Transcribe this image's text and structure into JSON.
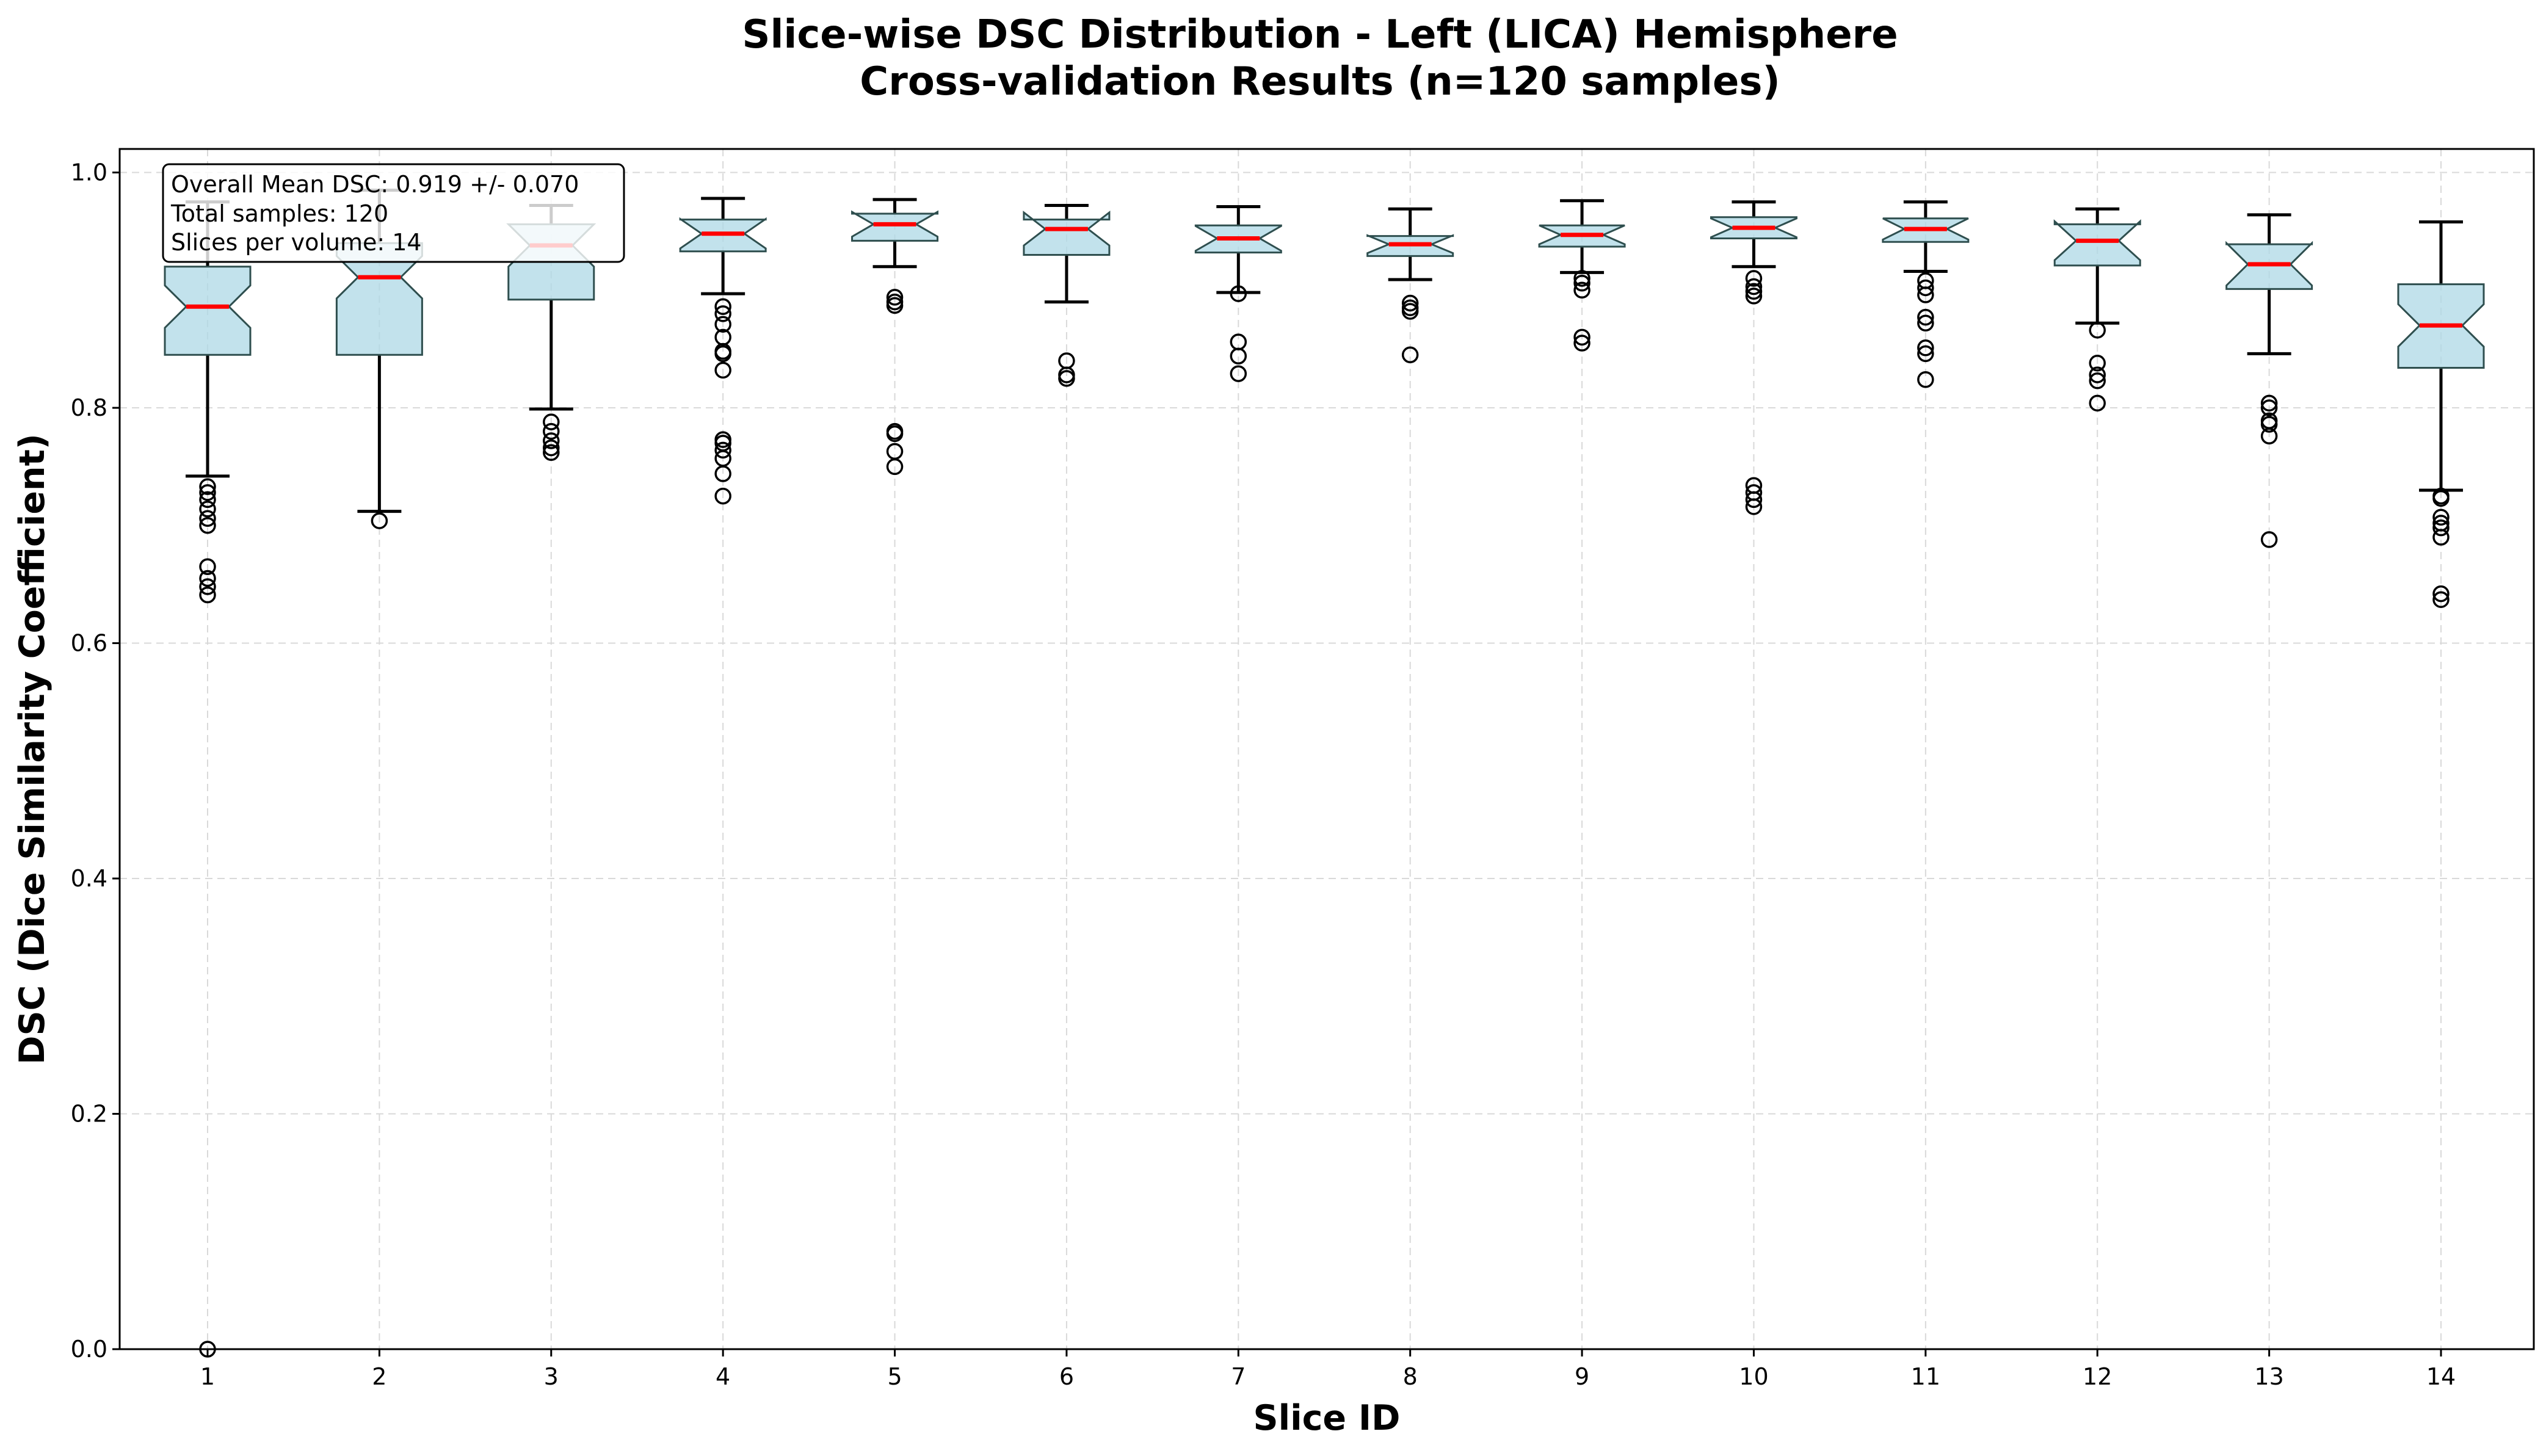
{
  "chart_data": {
    "type": "box",
    "title_lines": [
      "Slice-wise DSC Distribution - Left (LICA) Hemisphere",
      "Cross-validation Results (n=120 samples)"
    ],
    "xlabel": "Slice ID",
    "ylabel": "DSC (Dice Similarity Coefficient)",
    "ylim": [
      0.0,
      1.02
    ],
    "yticks": [
      "0.0",
      "0.2",
      "0.4",
      "0.6",
      "0.8",
      "1.0"
    ],
    "grid": true,
    "notched": true,
    "categories": [
      "1",
      "2",
      "3",
      "4",
      "5",
      "6",
      "7",
      "8",
      "9",
      "10",
      "11",
      "12",
      "13",
      "14"
    ],
    "boxes": [
      {
        "slice": "1",
        "whisker_low": 0.742,
        "q1": 0.845,
        "median": 0.886,
        "q3": 0.92,
        "whisker_high": 0.975,
        "outliers": [
          0.733,
          0.728,
          0.722,
          0.714,
          0.706,
          0.7,
          0.665,
          0.655,
          0.648,
          0.641,
          0.0
        ]
      },
      {
        "slice": "2",
        "whisker_low": 0.712,
        "q1": 0.845,
        "median": 0.911,
        "q3": 0.94,
        "whisker_high": 0.985,
        "outliers": [
          0.704
        ]
      },
      {
        "slice": "3",
        "whisker_low": 0.799,
        "q1": 0.892,
        "median": 0.938,
        "q3": 0.956,
        "whisker_high": 0.972,
        "outliers": [
          0.788,
          0.78,
          0.772,
          0.766,
          0.762
        ]
      },
      {
        "slice": "4",
        "whisker_low": 0.897,
        "q1": 0.933,
        "median": 0.948,
        "q3": 0.96,
        "whisker_high": 0.978,
        "outliers": [
          0.886,
          0.88,
          0.871,
          0.86,
          0.848,
          0.846,
          0.832,
          0.773,
          0.77,
          0.764,
          0.757,
          0.744,
          0.725
        ]
      },
      {
        "slice": "5",
        "whisker_low": 0.92,
        "q1": 0.942,
        "median": 0.956,
        "q3": 0.965,
        "whisker_high": 0.977,
        "outliers": [
          0.894,
          0.89,
          0.887,
          0.78,
          0.778,
          0.763,
          0.75
        ]
      },
      {
        "slice": "6",
        "whisker_low": 0.89,
        "q1": 0.93,
        "median": 0.952,
        "q3": 0.96,
        "whisker_high": 0.972,
        "outliers": [
          0.84,
          0.828,
          0.825
        ]
      },
      {
        "slice": "7",
        "whisker_low": 0.898,
        "q1": 0.932,
        "median": 0.944,
        "q3": 0.955,
        "whisker_high": 0.971,
        "outliers": [
          0.897,
          0.856,
          0.844,
          0.829
        ]
      },
      {
        "slice": "8",
        "whisker_low": 0.909,
        "q1": 0.929,
        "median": 0.939,
        "q3": 0.946,
        "whisker_high": 0.969,
        "outliers": [
          0.889,
          0.885,
          0.882,
          0.845
        ]
      },
      {
        "slice": "9",
        "whisker_low": 0.915,
        "q1": 0.937,
        "median": 0.947,
        "q3": 0.955,
        "whisker_high": 0.976,
        "outliers": [
          0.91,
          0.906,
          0.9,
          0.86,
          0.855
        ]
      },
      {
        "slice": "10",
        "whisker_low": 0.92,
        "q1": 0.944,
        "median": 0.953,
        "q3": 0.962,
        "whisker_high": 0.975,
        "outliers": [
          0.91,
          0.903,
          0.899,
          0.895,
          0.734,
          0.728,
          0.722,
          0.716
        ]
      },
      {
        "slice": "11",
        "whisker_low": 0.916,
        "q1": 0.941,
        "median": 0.952,
        "q3": 0.961,
        "whisker_high": 0.975,
        "outliers": [
          0.908,
          0.902,
          0.896,
          0.877,
          0.872,
          0.851,
          0.846,
          0.824
        ]
      },
      {
        "slice": "12",
        "whisker_low": 0.872,
        "q1": 0.921,
        "median": 0.942,
        "q3": 0.956,
        "whisker_high": 0.969,
        "outliers": [
          0.866,
          0.838,
          0.828,
          0.823,
          0.804
        ]
      },
      {
        "slice": "13",
        "whisker_low": 0.846,
        "q1": 0.901,
        "median": 0.922,
        "q3": 0.939,
        "whisker_high": 0.964,
        "outliers": [
          0.804,
          0.8,
          0.789,
          0.786,
          0.776,
          0.688
        ]
      },
      {
        "slice": "14",
        "whisker_low": 0.73,
        "q1": 0.834,
        "median": 0.87,
        "q3": 0.905,
        "whisker_high": 0.958,
        "outliers": [
          0.725,
          0.723,
          0.707,
          0.702,
          0.698,
          0.69,
          0.642,
          0.637
        ]
      }
    ],
    "stats_box": {
      "lines": [
        "Overall Mean DSC: 0.919 +/- 0.070",
        "Total samples: 120",
        "Slices per volume: 14"
      ],
      "placement": "top-left"
    },
    "colors": {
      "box_fill": "#add8e6",
      "box_edge": "#2f4f4f",
      "median": "#ff0000",
      "whisker": "#000000",
      "grid": "#d9d9d9"
    }
  }
}
